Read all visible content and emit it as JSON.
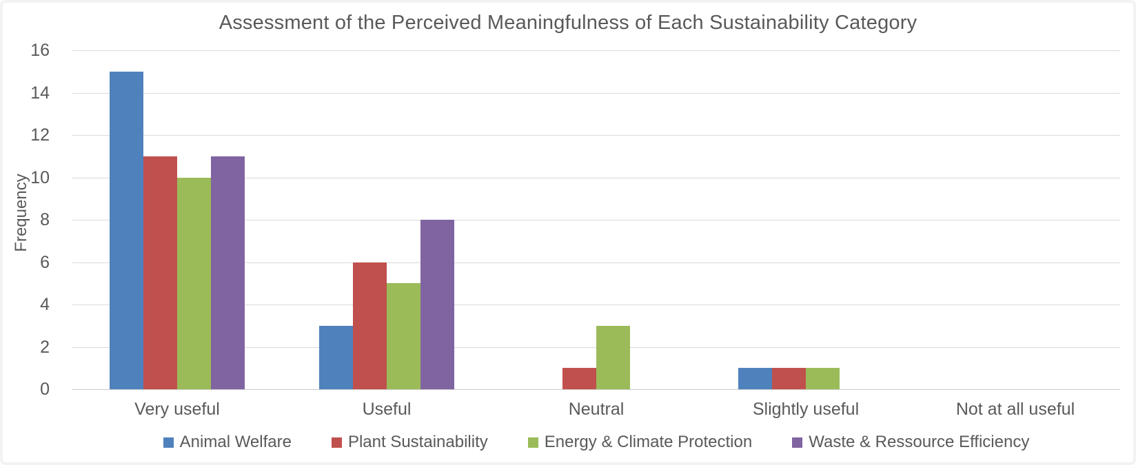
{
  "colors": {
    "text": "#595959",
    "gridline": "#d9d9d9",
    "axis_line": "#c9c9c9",
    "background": "#ffffff"
  },
  "chart_data": {
    "type": "bar",
    "title": "Assessment of the Perceived Meaningfulness of Each Sustainability Category",
    "xlabel": "",
    "ylabel": "Frequency",
    "categories": [
      "Very useful",
      "Useful",
      "Neutral",
      "Slightly useful",
      "Not at all useful"
    ],
    "series": [
      {
        "name": "Animal Welfare",
        "color": "#4F81BD",
        "values": [
          15,
          3,
          0,
          1,
          0
        ]
      },
      {
        "name": "Plant Sustainability",
        "color": "#C0504D",
        "values": [
          11,
          6,
          1,
          1,
          0
        ]
      },
      {
        "name": "Energy & Climate Protection",
        "color": "#9BBB59",
        "values": [
          10,
          5,
          3,
          1,
          0
        ]
      },
      {
        "name": "Waste & Ressource Efficiency",
        "color": "#8064A2",
        "values": [
          11,
          8,
          0,
          0,
          0
        ]
      }
    ],
    "ylim": [
      0,
      16
    ],
    "ytick_step": 2,
    "yticks": [
      0,
      2,
      4,
      6,
      8,
      10,
      12,
      14,
      16
    ],
    "grid": true,
    "legend_position": "bottom"
  }
}
